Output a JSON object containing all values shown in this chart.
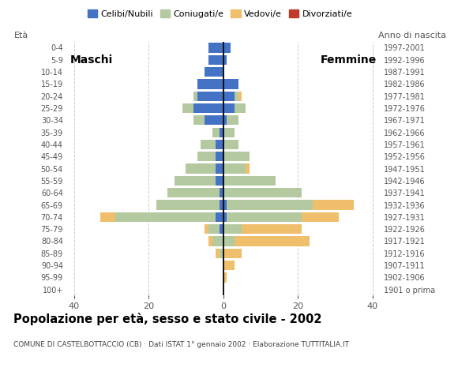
{
  "age_groups": [
    "100+",
    "95-99",
    "90-94",
    "85-89",
    "80-84",
    "75-79",
    "70-74",
    "65-69",
    "60-64",
    "55-59",
    "50-54",
    "45-49",
    "40-44",
    "35-39",
    "30-34",
    "25-29",
    "20-24",
    "15-19",
    "10-14",
    "5-9",
    "0-4"
  ],
  "birth_years": [
    "1901 o prima",
    "1902-1906",
    "1907-1911",
    "1912-1916",
    "1917-1921",
    "1922-1926",
    "1927-1931",
    "1932-1936",
    "1937-1941",
    "1942-1946",
    "1947-1951",
    "1952-1956",
    "1957-1961",
    "1962-1966",
    "1967-1971",
    "1972-1976",
    "1977-1981",
    "1982-1986",
    "1987-1991",
    "1992-1996",
    "1997-2001"
  ],
  "males": {
    "celibe": [
      0,
      0,
      0,
      0,
      0,
      1,
      2,
      1,
      1,
      2,
      2,
      2,
      2,
      1,
      5,
      8,
      7,
      7,
      5,
      4,
      4
    ],
    "coniugato": [
      0,
      0,
      0,
      1,
      3,
      3,
      27,
      17,
      14,
      11,
      8,
      5,
      4,
      2,
      3,
      3,
      1,
      0,
      0,
      0,
      0
    ],
    "vedovo": [
      0,
      0,
      0,
      1,
      1,
      1,
      4,
      0,
      0,
      0,
      0,
      0,
      0,
      0,
      0,
      0,
      0,
      0,
      0,
      0,
      0
    ],
    "divorziato": [
      0,
      0,
      0,
      0,
      0,
      0,
      0,
      0,
      0,
      0,
      0,
      0,
      0,
      0,
      0,
      0,
      0,
      0,
      0,
      0,
      0
    ]
  },
  "females": {
    "celibe": [
      0,
      0,
      0,
      0,
      0,
      0,
      1,
      1,
      0,
      0,
      0,
      0,
      0,
      0,
      1,
      3,
      3,
      4,
      0,
      1,
      2
    ],
    "coniugato": [
      0,
      0,
      0,
      0,
      3,
      5,
      20,
      23,
      21,
      14,
      6,
      7,
      4,
      3,
      3,
      3,
      1,
      0,
      0,
      0,
      0
    ],
    "vedovo": [
      0,
      1,
      3,
      5,
      20,
      16,
      10,
      11,
      0,
      0,
      1,
      0,
      0,
      0,
      0,
      0,
      1,
      0,
      0,
      0,
      0
    ],
    "divorziato": [
      0,
      0,
      0,
      0,
      0,
      0,
      0,
      0,
      0,
      0,
      0,
      0,
      0,
      0,
      0,
      0,
      0,
      0,
      0,
      0,
      0
    ]
  },
  "colors": {
    "celibe": "#4472c4",
    "coniugato": "#b5c9a1",
    "vedovo": "#f0bf6c",
    "divorziato": "#c0392b"
  },
  "xlim": 42,
  "title": "Popolazione per età, sesso e stato civile - 2002",
  "subtitle": "COMUNE DI CASTELBOTTACCIO (CB) · Dati ISTAT 1° gennaio 2002 · Elaborazione TUTTITALIA.IT",
  "label_maschi": "Maschi",
  "label_femmine": "Femmine",
  "legend_labels": [
    "Celibi/Nubili",
    "Coniugati/e",
    "Vedovi/e",
    "Divorziati/e"
  ],
  "grid_color": "#cccccc",
  "background_color": "#ffffff",
  "bar_height": 0.8
}
